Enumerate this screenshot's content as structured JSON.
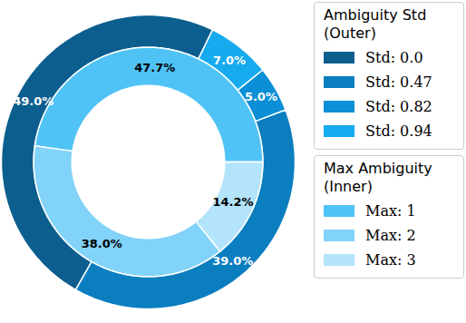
{
  "chart_data": {
    "type": "donut",
    "data_labels": true,
    "legend": "right",
    "series": [
      {
        "name": "Ambiguity Std\n(Outer)",
        "categories": [
          "Std: 0.0",
          "Std: 0.47",
          "Std: 0.82",
          "Std: 0.94"
        ],
        "values": [
          49.0,
          39.0,
          5.0,
          7.0
        ],
        "value_labels": [
          "49.0%",
          "39.0%",
          "5.0%",
          "7.0%"
        ],
        "colors": [
          "#0b5e8e",
          "#0a7ebf",
          "#0b8fd6",
          "#16aaef"
        ]
      },
      {
        "name": "Max Ambiguity\n(Inner)",
        "categories": [
          "Max: 1",
          "Max: 2",
          "Max: 3"
        ],
        "values": [
          47.7,
          38.0,
          14.2
        ],
        "value_labels": [
          "47.7%",
          "38.0%",
          "14.2%"
        ],
        "colors": [
          "#50c3f6",
          "#82d3f9",
          "#b4e4fb"
        ]
      }
    ]
  }
}
